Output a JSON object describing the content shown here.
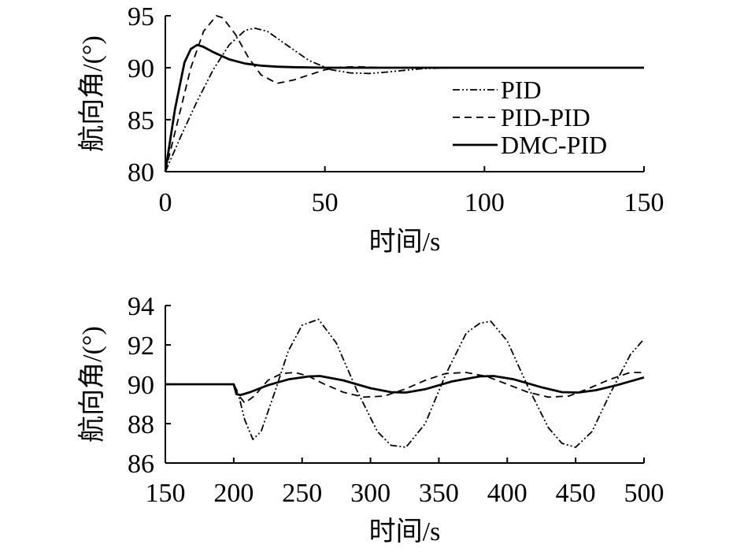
{
  "chart_data": [
    {
      "type": "line",
      "xlabel": "时间/s",
      "ylabel": "航向角/(°)",
      "xlim": [
        0,
        150
      ],
      "ylim": [
        80,
        95
      ],
      "xticks": [
        "0",
        "50",
        "100",
        "150"
      ],
      "yticks": [
        "80",
        "85",
        "90",
        "95"
      ],
      "legend": {
        "position": "right-center"
      },
      "series": [
        {
          "name": "PID",
          "style": "dash-dot-dot",
          "x": [
            0,
            5,
            10,
            15,
            20,
            25,
            28,
            32,
            38,
            45,
            52,
            58,
            64,
            70,
            80,
            90,
            100,
            150
          ],
          "y": [
            80,
            83.5,
            86.8,
            89.8,
            92.2,
            93.6,
            93.8,
            93.5,
            92.2,
            90.7,
            89.8,
            89.5,
            89.45,
            89.6,
            89.9,
            90,
            90,
            90
          ]
        },
        {
          "name": "PID-PID",
          "style": "dashed",
          "x": [
            0,
            4,
            8,
            12,
            16,
            18,
            22,
            26,
            30,
            35,
            40,
            45,
            50,
            55,
            60,
            70,
            80,
            150
          ],
          "y": [
            80,
            85,
            90,
            93.5,
            95.0,
            94.8,
            93.2,
            91.0,
            89.3,
            88.5,
            88.8,
            89.3,
            89.8,
            90.05,
            90.1,
            90,
            90,
            90
          ]
        },
        {
          "name": "DMC-PID",
          "style": "solid",
          "x": [
            0,
            3,
            6,
            8,
            10,
            12,
            15,
            20,
            25,
            30,
            35,
            40,
            50,
            60,
            150
          ],
          "y": [
            80,
            86,
            90.5,
            91.8,
            92.2,
            92.0,
            91.5,
            90.8,
            90.4,
            90.2,
            90.1,
            90.05,
            90,
            90,
            90
          ]
        }
      ]
    },
    {
      "type": "line",
      "xlabel": "时间/s",
      "ylabel": "航向角/(°)",
      "xlim": [
        150,
        500
      ],
      "ylim": [
        86,
        94
      ],
      "xticks": [
        "150",
        "200",
        "250",
        "300",
        "350",
        "400",
        "450",
        "500"
      ],
      "yticks": [
        "86",
        "88",
        "90",
        "92",
        "94"
      ],
      "series": [
        {
          "name": "PID",
          "style": "dash-dot-dot",
          "x": [
            150,
            200,
            203,
            208,
            214,
            220,
            230,
            240,
            250,
            262,
            275,
            290,
            305,
            315,
            326,
            340,
            355,
            370,
            380,
            388,
            400,
            415,
            430,
            440,
            450,
            462,
            475,
            490,
            500
          ],
          "y": [
            90,
            90,
            89.6,
            88.2,
            87.2,
            87.6,
            89.6,
            91.7,
            93.0,
            93.3,
            92.1,
            89.7,
            87.6,
            86.9,
            86.8,
            88.0,
            90.5,
            92.6,
            93.1,
            93.2,
            92.2,
            89.9,
            87.8,
            87.0,
            86.8,
            87.6,
            89.5,
            91.5,
            92.3
          ]
        },
        {
          "name": "PID-PID",
          "style": "dashed",
          "x": [
            150,
            200,
            203,
            208,
            215,
            225,
            235,
            245,
            255,
            265,
            280,
            295,
            310,
            325,
            340,
            355,
            370,
            385,
            400,
            415,
            430,
            445,
            460,
            475,
            490,
            500
          ],
          "y": [
            90,
            90,
            89.5,
            89.05,
            89.4,
            90.2,
            90.55,
            90.6,
            90.4,
            90.05,
            89.6,
            89.35,
            89.4,
            89.75,
            90.2,
            90.55,
            90.6,
            90.4,
            90.0,
            89.6,
            89.35,
            89.4,
            89.8,
            90.25,
            90.6,
            90.6
          ]
        },
        {
          "name": "DMC-PID",
          "style": "solid",
          "x": [
            150,
            200,
            202,
            205,
            212,
            225,
            240,
            255,
            263,
            280,
            300,
            315,
            326,
            340,
            360,
            380,
            390,
            405,
            425,
            440,
            452,
            465,
            480,
            500
          ],
          "y": [
            90,
            90,
            89.5,
            89.45,
            89.6,
            89.95,
            90.25,
            90.4,
            90.42,
            90.2,
            89.8,
            89.6,
            89.58,
            89.75,
            90.15,
            90.4,
            90.42,
            90.25,
            89.85,
            89.6,
            89.58,
            89.7,
            89.95,
            90.35
          ]
        }
      ]
    }
  ]
}
